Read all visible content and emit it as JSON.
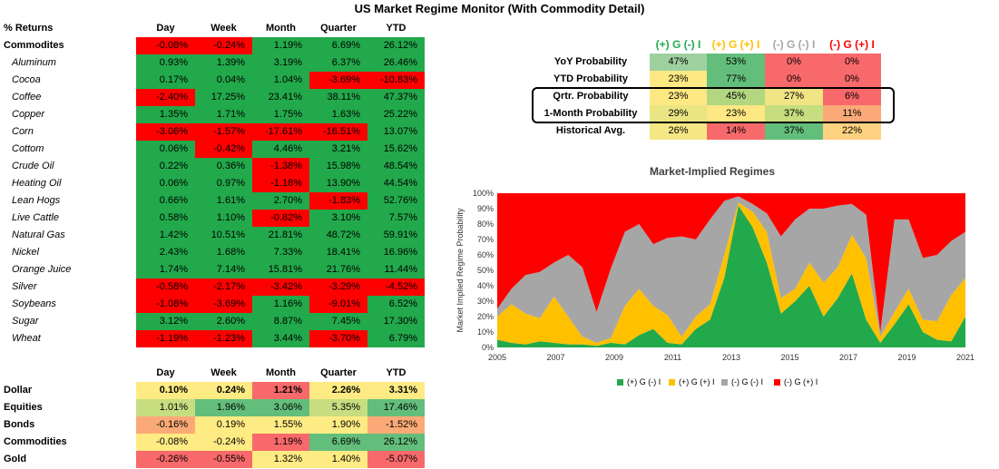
{
  "title": "US Market Regime Monitor (With Commodity Detail)",
  "colors": {
    "green": "#22a94b",
    "red": "#ff0000",
    "lightgreen": "#63be7b",
    "yellowgreen": "#c6de80",
    "yellow": "#fde883",
    "orange": "#fbaa77",
    "pinkred": "#f8696b",
    "lightyellow": "#ffeb84"
  },
  "returns_table": {
    "header": {
      "label": "% Returns",
      "cols": [
        "Day",
        "Week",
        "Month",
        "Quarter",
        "YTD"
      ]
    },
    "section_label": "Commodites",
    "section_values": [
      "-0.08%",
      "-0.24%",
      "1.19%",
      "6.69%",
      "26.12%"
    ],
    "rows": [
      {
        "name": "Aluminum",
        "values": [
          "0.93%",
          "1.39%",
          "3.19%",
          "6.37%",
          "26.46%"
        ]
      },
      {
        "name": "Cocoa",
        "values": [
          "0.17%",
          "0.04%",
          "1.04%",
          "-3.69%",
          "-10.83%"
        ]
      },
      {
        "name": "Coffee",
        "values": [
          "-2.40%",
          "17.25%",
          "23.41%",
          "38.11%",
          "47.37%"
        ]
      },
      {
        "name": "Copper",
        "values": [
          "1.35%",
          "1.71%",
          "1.75%",
          "1.63%",
          "25.22%"
        ]
      },
      {
        "name": "Corn",
        "values": [
          "-3.06%",
          "-1.57%",
          "-17.61%",
          "-16.51%",
          "13.07%"
        ]
      },
      {
        "name": "Cottom",
        "values": [
          "0.06%",
          "-0.42%",
          "4.46%",
          "3.21%",
          "15.62%"
        ]
      },
      {
        "name": "Crude Oil",
        "values": [
          "0.22%",
          "0.36%",
          "-1.38%",
          "15.98%",
          "48.54%"
        ]
      },
      {
        "name": "Heating Oil",
        "values": [
          "0.06%",
          "0.97%",
          "-1.18%",
          "13.90%",
          "44.54%"
        ]
      },
      {
        "name": "Lean Hogs",
        "values": [
          "0.66%",
          "1.61%",
          "2.70%",
          "-1.83%",
          "52.76%"
        ]
      },
      {
        "name": "Live Cattle",
        "values": [
          "0.58%",
          "1.10%",
          "-0.82%",
          "3.10%",
          "7.57%"
        ]
      },
      {
        "name": "Natural Gas",
        "values": [
          "1.42%",
          "10.51%",
          "21.81%",
          "48.72%",
          "59.91%"
        ]
      },
      {
        "name": "Nickel",
        "values": [
          "2.43%",
          "1.68%",
          "7.33%",
          "18.41%",
          "16.96%"
        ]
      },
      {
        "name": "Orange Juice",
        "values": [
          "1.74%",
          "7.14%",
          "15.81%",
          "21.76%",
          "11.44%"
        ]
      },
      {
        "name": "Silver",
        "values": [
          "-0.58%",
          "-2.17%",
          "-3.42%",
          "-3.29%",
          "-4.52%"
        ]
      },
      {
        "name": "Soybeans",
        "values": [
          "-1.08%",
          "-3.69%",
          "1.16%",
          "-9.01%",
          "6.52%"
        ]
      },
      {
        "name": "Sugar",
        "values": [
          "3.12%",
          "2.60%",
          "8.87%",
          "7.45%",
          "17.30%"
        ]
      },
      {
        "name": "Wheat",
        "values": [
          "-1.19%",
          "-1.23%",
          "3.44%",
          "-3.70%",
          "6.79%"
        ]
      }
    ]
  },
  "asset_table": {
    "cols": [
      "Day",
      "Week",
      "Month",
      "Quarter",
      "YTD"
    ],
    "rows": [
      {
        "name": "Dollar",
        "values": [
          "0.10%",
          "0.24%",
          "1.21%",
          "2.26%",
          "3.31%"
        ],
        "colors": [
          "lightyellow",
          "lightyellow",
          "pinkred",
          "lightyellow",
          "lightyellow"
        ]
      },
      {
        "name": "Equities",
        "values": [
          "1.01%",
          "1.96%",
          "3.06%",
          "5.35%",
          "17.46%"
        ],
        "colors": [
          "yellowgreen",
          "lightgreen",
          "lightgreen",
          "yellowgreen",
          "lightgreen"
        ]
      },
      {
        "name": "Bonds",
        "values": [
          "-0.16%",
          "0.19%",
          "1.55%",
          "1.90%",
          "-1.52%"
        ],
        "colors": [
          "orange",
          "lightyellow",
          "lightyellow",
          "lightyellow",
          "orange"
        ]
      },
      {
        "name": "Commodities",
        "values": [
          "-0.08%",
          "-0.24%",
          "1.19%",
          "6.69%",
          "26.12%"
        ],
        "colors": [
          "lightyellow",
          "lightyellow",
          "pinkred",
          "lightgreen",
          "lightgreen"
        ]
      },
      {
        "name": "Gold",
        "values": [
          "-0.26%",
          "-0.55%",
          "1.32%",
          "1.40%",
          "-5.07%"
        ],
        "colors": [
          "pinkred",
          "pinkred",
          "lightyellow",
          "lightyellow",
          "pinkred"
        ]
      }
    ]
  },
  "probability_table": {
    "regimes": [
      {
        "label": "(+) G (-) I",
        "color": "#22a94b"
      },
      {
        "label": "(+) G (+) I",
        "color": "#ffc000"
      },
      {
        "label": "(-) G (-) I",
        "color": "#a6a6a6"
      },
      {
        "label": "(-) G (+) I",
        "color": "#ff0000"
      }
    ],
    "rows": [
      {
        "name": "YoY Probability",
        "values": [
          "47%",
          "53%",
          "0%",
          "0%"
        ],
        "colors": [
          "#9fd1a0",
          "#63be7b",
          "#f8696b",
          "#f8696b"
        ]
      },
      {
        "name": "YTD Probability",
        "values": [
          "23%",
          "77%",
          "0%",
          "0%"
        ],
        "colors": [
          "#fde883",
          "#63be7b",
          "#f8696b",
          "#f8696b"
        ]
      },
      {
        "name": "Qrtr. Probability",
        "values": [
          "23%",
          "45%",
          "27%",
          "6%"
        ],
        "colors": [
          "#fde883",
          "#b3d681",
          "#f0e484",
          "#f8696b"
        ]
      },
      {
        "name": "1-Month Probability",
        "values": [
          "29%",
          "23%",
          "37%",
          "11%"
        ],
        "colors": [
          "#eae583",
          "#fde883",
          "#c6de80",
          "#fbaa77"
        ]
      },
      {
        "name": "Historical Avg.",
        "values": [
          "26%",
          "14%",
          "37%",
          "22%"
        ],
        "colors": [
          "#f5e884",
          "#f8696b",
          "#63be7b",
          "#fed280"
        ]
      }
    ]
  },
  "chart_data": {
    "type": "area",
    "title": "Market-Implied Regimes",
    "ylabel": "Market Implied Regime Probability",
    "xlabel": "",
    "x_ticks": [
      "2005",
      "2007",
      "2009",
      "2011",
      "2013",
      "2015",
      "2017",
      "2019",
      "2021"
    ],
    "y_ticks": [
      "0%",
      "10%",
      "20%",
      "30%",
      "40%",
      "50%",
      "60%",
      "70%",
      "80%",
      "90%",
      "100%"
    ],
    "ylim": [
      0,
      100
    ],
    "stacked": true,
    "x": [
      "2005",
      "2005.5",
      "2006",
      "2006.5",
      "2007",
      "2007.5",
      "2008",
      "2008.5",
      "2009",
      "2009.5",
      "2010",
      "2010.5",
      "2011",
      "2011.5",
      "2012",
      "2012.5",
      "2013",
      "2013.5",
      "2014",
      "2014.5",
      "2015",
      "2015.5",
      "2016",
      "2016.5",
      "2017",
      "2017.5",
      "2018",
      "2018.5",
      "2019",
      "2019.5",
      "2020",
      "2020.5",
      "2021",
      "2021.5"
    ],
    "series": [
      {
        "name": "(+) G (-) I",
        "color": "#22a94b",
        "values": [
          5,
          3,
          2,
          4,
          3,
          2,
          2,
          1,
          3,
          2,
          8,
          12,
          3,
          2,
          12,
          18,
          45,
          92,
          78,
          55,
          22,
          30,
          40,
          20,
          32,
          48,
          18,
          3,
          15,
          28,
          10,
          5,
          4,
          20
        ]
      },
      {
        "name": "(+) G (+) I",
        "color": "#ffc000",
        "values": [
          15,
          25,
          20,
          15,
          30,
          18,
          5,
          2,
          3,
          25,
          30,
          15,
          18,
          5,
          8,
          10,
          15,
          2,
          10,
          20,
          10,
          8,
          15,
          22,
          20,
          25,
          40,
          4,
          8,
          10,
          8,
          12,
          30,
          25
        ]
      },
      {
        "name": "(-) G (-) I",
        "color": "#a6a6a6",
        "values": [
          5,
          10,
          25,
          30,
          22,
          40,
          45,
          20,
          45,
          48,
          42,
          40,
          50,
          65,
          50,
          55,
          35,
          4,
          5,
          12,
          40,
          45,
          35,
          48,
          40,
          20,
          28,
          3,
          60,
          45,
          40,
          43,
          35,
          30
        ]
      },
      {
        "name": "(-) G (+) I",
        "color": "#ff0000",
        "values": [
          75,
          62,
          53,
          51,
          45,
          40,
          48,
          77,
          49,
          25,
          20,
          33,
          29,
          28,
          30,
          17,
          5,
          2,
          7,
          13,
          28,
          17,
          10,
          10,
          8,
          7,
          14,
          90,
          17,
          17,
          42,
          40,
          31,
          25
        ]
      }
    ],
    "legend": [
      "(+) G (-) I",
      "(+) G (+) I",
      "(-) G (-) I",
      "(-) G (+) I"
    ],
    "legend_position": "bottom",
    "grid": false
  }
}
